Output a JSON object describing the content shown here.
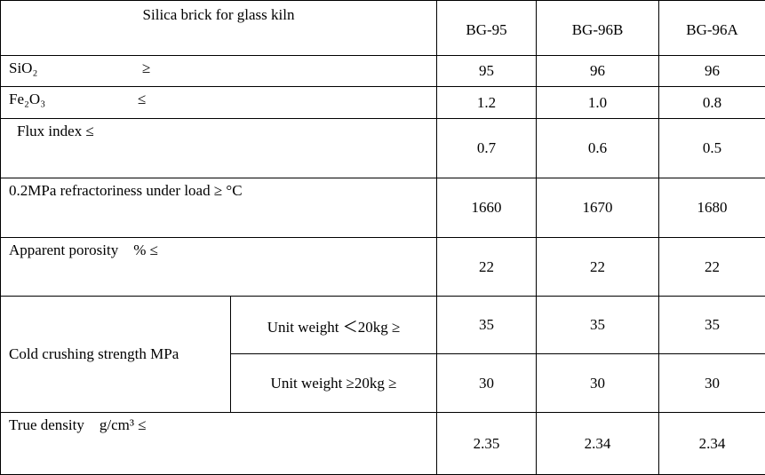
{
  "table": {
    "title": "Silica brick for glass kiln",
    "columns": [
      "BG-95",
      "BG-96B",
      "BG-96A"
    ],
    "rows": [
      {
        "label": "SiO₂",
        "condition": "≥",
        "values": [
          "95",
          "96",
          "96"
        ]
      },
      {
        "label": "Fe₂O₃",
        "condition": "≤",
        "values": [
          "1.2",
          "1.0",
          "0.8"
        ]
      },
      {
        "label": "Flux index ≤",
        "values": [
          "0.7",
          "0.6",
          "0.5"
        ]
      },
      {
        "label": "0.2MPa refractoriness under load ≥ °C",
        "values": [
          "1660",
          "1670",
          "1680"
        ]
      },
      {
        "label": "Apparent porosity    % ≤",
        "values": [
          "22",
          "22",
          "22"
        ]
      },
      {
        "label": "Cold crushing strength MPa",
        "subrows": [
          {
            "label": "Unit weight ＜20kg ≥",
            "values": [
              "35",
              "35",
              "35"
            ]
          },
          {
            "label": "Unit weight ≥20kg ≥",
            "values": [
              "30",
              "30",
              "30"
            ]
          }
        ]
      },
      {
        "label": "True density    g/cm³ ≤",
        "values": [
          "2.35",
          "2.34",
          "2.34"
        ]
      }
    ]
  }
}
